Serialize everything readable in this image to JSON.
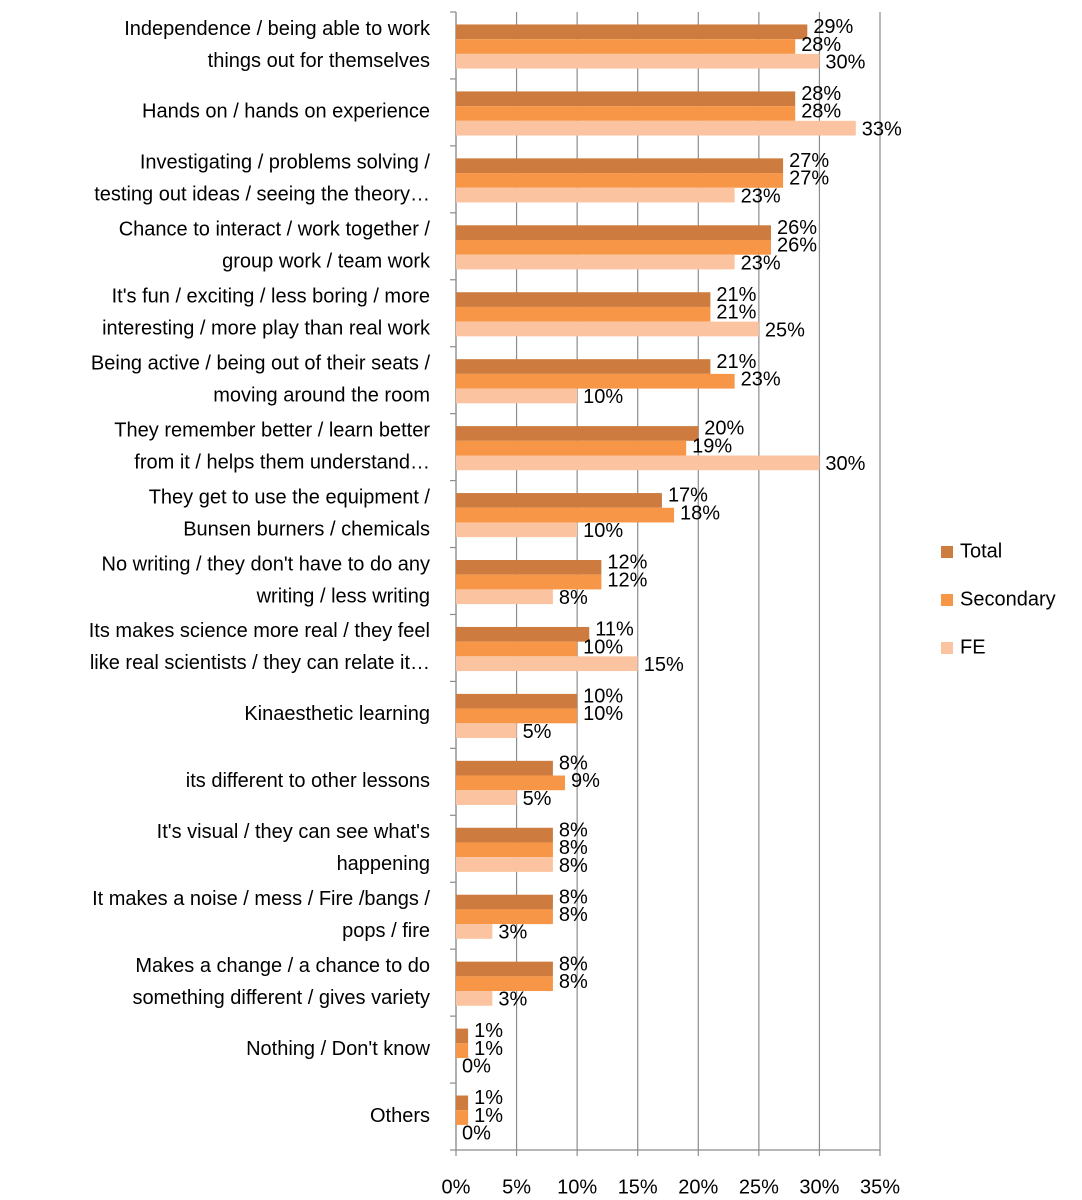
{
  "chart_data": {
    "type": "bar",
    "orientation": "horizontal",
    "categories": [
      [
        "Independence / being able to work",
        "things out for themselves"
      ],
      [
        "Hands on / hands on experience"
      ],
      [
        "Investigating / problems solving /",
        "testing out ideas / seeing the theory…"
      ],
      [
        "Chance to interact / work together /",
        "group work / team work"
      ],
      [
        "It's fun / exciting / less boring / more",
        "interesting / more play than  real work"
      ],
      [
        "Being active / being out of their seats /",
        "moving around the room"
      ],
      [
        "They remember better / learn better",
        "from it / helps them understand…"
      ],
      [
        "They get to use the equipment /",
        "Bunsen burners / chemicals"
      ],
      [
        "No writing / they don't have to do any",
        "writing / less writing"
      ],
      [
        "Its makes science more real / they feel",
        "like real scientists / they can relate it…"
      ],
      [
        "Kinaesthetic learning"
      ],
      [
        "its different to other lessons"
      ],
      [
        "It's visual / they can see what's",
        "happening"
      ],
      [
        "It makes a noise / mess / Fire /bangs /",
        "pops / fire"
      ],
      [
        "Makes a change / a chance to do",
        "something different / gives variety"
      ],
      [
        "Nothing / Don't know"
      ],
      [
        "Others"
      ]
    ],
    "series": [
      {
        "name": "Total",
        "color": "#cd7b3e",
        "values": [
          29,
          28,
          27,
          26,
          21,
          21,
          20,
          17,
          12,
          11,
          10,
          8,
          8,
          8,
          8,
          1,
          1
        ],
        "value_labels": [
          "29%",
          "28%",
          "27%",
          "26%",
          "21%",
          "21%",
          "20%",
          "17%",
          "12%",
          "11%",
          "10%",
          "8%",
          "8%",
          "8%",
          "8%",
          "1%",
          "1%"
        ]
      },
      {
        "name": "Secondary",
        "color": "#f79646",
        "values": [
          28,
          28,
          27,
          26,
          21,
          23,
          19,
          18,
          12,
          10,
          10,
          9,
          8,
          8,
          8,
          1,
          1
        ],
        "value_labels": [
          "28%",
          "28%",
          "27%",
          "26%",
          "21%",
          "23%",
          "19%",
          "18%",
          "12%",
          "10%",
          "10%",
          "9%",
          "8%",
          "8%",
          "8%",
          "1%",
          "1%"
        ]
      },
      {
        "name": "FE",
        "color": "#fbc3a0",
        "values": [
          30,
          33,
          23,
          23,
          25,
          10,
          30,
          10,
          8,
          15,
          5,
          5,
          8,
          3,
          3,
          0,
          0
        ],
        "value_labels": [
          "30%",
          "33%",
          "23%",
          "23%",
          "25%",
          "10%",
          "30%",
          "10%",
          "8%",
          "15%",
          "5%",
          "5%",
          "8%",
          "3%",
          "3%",
          "0%",
          "0%"
        ]
      }
    ],
    "xlim": [
      0,
      35
    ],
    "xticks": [
      {
        "value": 0,
        "label": "0%"
      },
      {
        "value": 5,
        "label": "5%"
      },
      {
        "value": 10,
        "label": "10%"
      },
      {
        "value": 15,
        "label": "15%"
      },
      {
        "value": 20,
        "label": "20%"
      },
      {
        "value": 25,
        "label": "25%"
      },
      {
        "value": 30,
        "label": "30%"
      },
      {
        "value": 35,
        "label": "35%"
      }
    ],
    "grid": true,
    "legend": "right"
  }
}
